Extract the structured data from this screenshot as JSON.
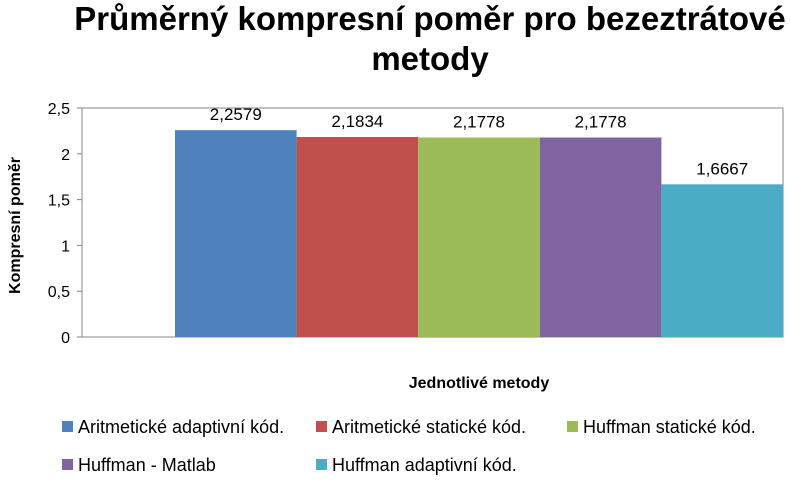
{
  "chart_data": {
    "type": "bar",
    "title_lines": [
      "Průměrný kompresní poměr pro bezeztrátové",
      "metody"
    ],
    "xlabel": "Jednotlivé metody",
    "ylabel": "Kompresní poměr",
    "ylim": [
      0,
      2.5
    ],
    "yticks": [
      "0",
      "0,5",
      "1",
      "1,5",
      "2",
      "2,5"
    ],
    "ytick_values": [
      0,
      0.5,
      1,
      1.5,
      2,
      2.5
    ],
    "grid": false,
    "legend_position": "bottom",
    "series": [
      {
        "name": "Aritmetické adaptivní  kód.",
        "value": 2.2579,
        "label": "2,2579",
        "color": "#4F81BD"
      },
      {
        "name": "Aritmetické statické kód.",
        "value": 2.1834,
        "label": "2,1834",
        "color": "#C0504D"
      },
      {
        "name": "Huffman statické kód.",
        "value": 2.1778,
        "label": "2,1778",
        "color": "#9BBB59"
      },
      {
        "name": "Huffman - Matlab",
        "value": 2.1778,
        "label": "2,1778",
        "color": "#8064A2"
      },
      {
        "name": "Huffman adaptivní kód.",
        "value": 1.6667,
        "label": "1,6667",
        "color": "#4BACC6"
      }
    ]
  }
}
